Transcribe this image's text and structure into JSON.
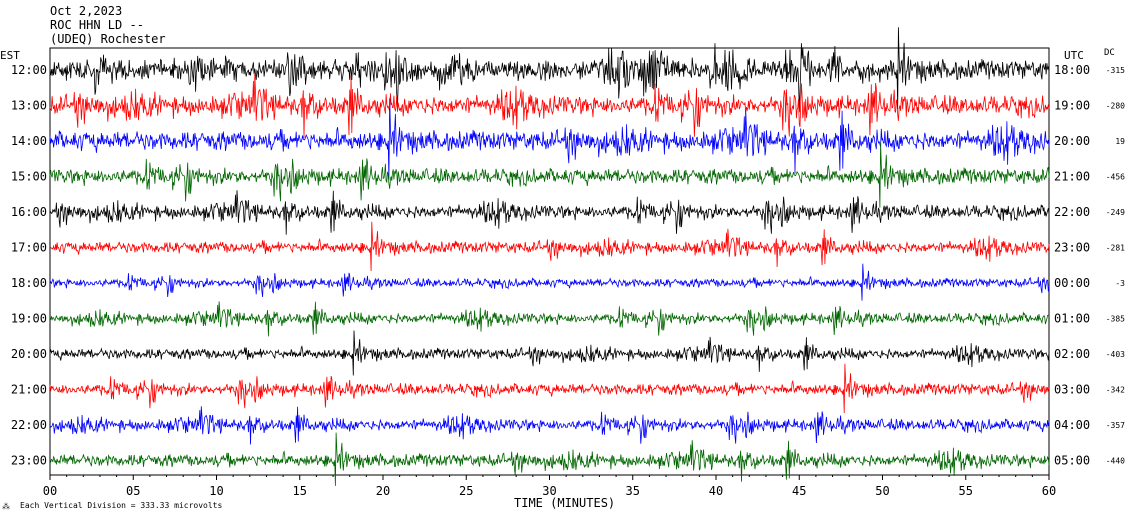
{
  "header": {
    "date": "Oct 2,2023",
    "station": "ROC HHN LD --",
    "network": "(UDEQ) Rochester"
  },
  "left_label": "EST",
  "right_label": "UTC",
  "dc_label": "DC",
  "footer": {
    "scale_note": "Each Vertical Division = 333.33 microvolts"
  },
  "chart_data": {
    "type": "line",
    "title": "",
    "xlabel": "TIME (MINUTES)",
    "ylabel": "",
    "xlim": [
      0,
      60
    ],
    "x_ticks": [
      0,
      5,
      10,
      15,
      20,
      25,
      30,
      35,
      40,
      45,
      50,
      55,
      60
    ],
    "x_tick_labels": [
      "00",
      "05",
      "10",
      "15",
      "20",
      "25",
      "30",
      "35",
      "40",
      "45",
      "50",
      "55",
      "60"
    ],
    "trace_colors": [
      "#000000",
      "#ff0000",
      "#0000ff",
      "#006600"
    ],
    "grid": false,
    "rows": [
      {
        "est": "12:00",
        "utc": "18:00",
        "dc": "-315",
        "amp": 1.0
      },
      {
        "est": "13:00",
        "utc": "19:00",
        "dc": "-280",
        "amp": 1.0
      },
      {
        "est": "14:00",
        "utc": "20:00",
        "dc": "19",
        "amp": 1.0
      },
      {
        "est": "15:00",
        "utc": "21:00",
        "dc": "-456",
        "amp": 0.8
      },
      {
        "est": "16:00",
        "utc": "22:00",
        "dc": "-249",
        "amp": 0.7
      },
      {
        "est": "17:00",
        "utc": "23:00",
        "dc": "-281",
        "amp": 0.6
      },
      {
        "est": "18:00",
        "utc": "00:00",
        "dc": "-3",
        "amp": 0.45
      },
      {
        "est": "19:00",
        "utc": "01:00",
        "dc": "-385",
        "amp": 0.55
      },
      {
        "est": "20:00",
        "utc": "02:00",
        "dc": "-403",
        "amp": 0.55
      },
      {
        "est": "21:00",
        "utc": "03:00",
        "dc": "-342",
        "amp": 0.6
      },
      {
        "est": "22:00",
        "utc": "04:00",
        "dc": "-357",
        "amp": 0.6
      },
      {
        "est": "23:00",
        "utc": "05:00",
        "dc": "-440",
        "amp": 0.65
      }
    ]
  }
}
